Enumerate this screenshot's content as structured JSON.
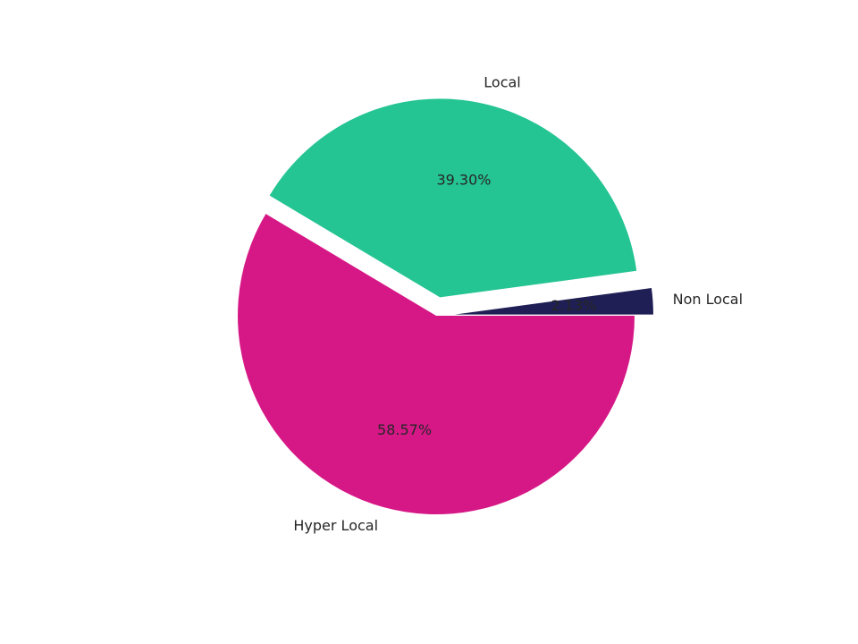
{
  "chart_data": {
    "type": "pie",
    "title": "",
    "categories": [
      "Hyper Local",
      "Local",
      "Non Local"
    ],
    "values": [
      58.57,
      39.3,
      2.13
    ],
    "percent_labels": [
      "58.57%",
      "39.30%",
      "2.13%"
    ],
    "colors": [
      "#d61887",
      "#25c493",
      "#1f1f55"
    ],
    "exploded": [
      false,
      true,
      true
    ],
    "legend": "none"
  }
}
